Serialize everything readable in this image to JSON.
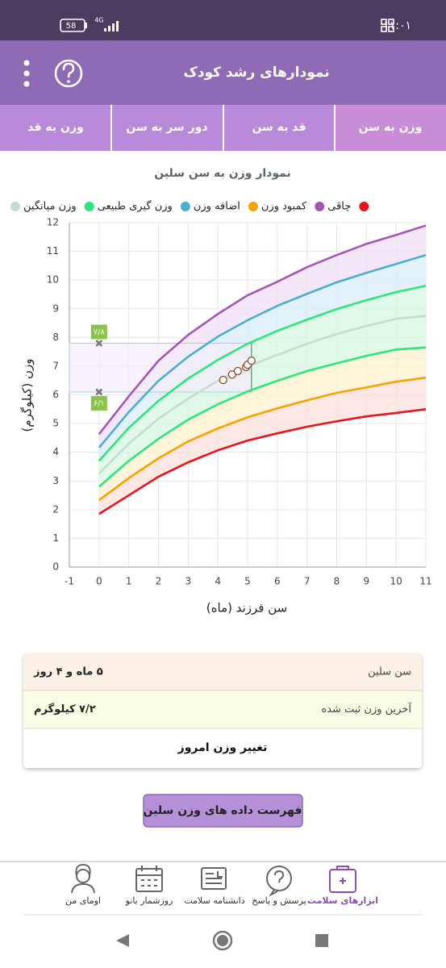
{
  "status_bar": {
    "time": "۱۱:۰۱",
    "battery": "58",
    "network": "4G"
  },
  "header": {
    "title": "نمودارهای رشد کودک"
  },
  "tabs": [
    "وزن به سن",
    "قد به سن",
    "دور سر به سن",
    "وزن به قد"
  ],
  "chart_data": {
    "type": "line",
    "title": "نمودار وزن به سن سلین",
    "x_label": "سن فرزند (ماه)",
    "y_label": "وزن (کیلوگرم)",
    "x": [
      0,
      1,
      2,
      3,
      4,
      5,
      6,
      7,
      8,
      9,
      10,
      11
    ],
    "series": [
      {
        "name": "وزن میانگین",
        "color": "#c8dccb",
        "fill": "#d6f7e2",
        "values": [
          3.26,
          4.3,
          5.17,
          5.87,
          6.49,
          6.99,
          7.39,
          7.78,
          8.12,
          8.4,
          8.65,
          8.75
        ]
      },
      {
        "name": "وزن گیری طبیعی",
        "color": "#2ee57a",
        "fill": "#d6f7e2",
        "values": [
          3.7,
          4.85,
          5.79,
          6.57,
          7.22,
          7.78,
          8.23,
          8.62,
          8.99,
          9.3,
          9.58,
          9.8
        ]
      },
      {
        "name": "اضافه وزن",
        "color": "#4aafcf",
        "fill": "#d9eef8",
        "values": [
          4.16,
          5.4,
          6.49,
          7.33,
          8.03,
          8.6,
          9.1,
          9.52,
          9.92,
          10.25,
          10.56,
          10.87
        ]
      },
      {
        "name": "کمبود وزن",
        "color": "#f5a300",
        "fill": "#fde0dc",
        "values": [
          2.33,
          3.1,
          3.79,
          4.38,
          4.83,
          5.22,
          5.53,
          5.81,
          6.07,
          6.26,
          6.46,
          6.6
        ]
      },
      {
        "name": "چاقی",
        "color": "#a455b8",
        "fill": "#efdff6",
        "values": [
          4.63,
          5.95,
          7.19,
          8.09,
          8.82,
          9.47,
          9.94,
          10.45,
          10.87,
          11.26,
          11.57,
          11.9
        ]
      },
      {
        "color": "#e8141b",
        "in_legend": true,
        "values": [
          1.85,
          2.5,
          3.15,
          3.65,
          4.07,
          4.41,
          4.66,
          4.89,
          5.08,
          5.25,
          5.37,
          5.5
        ]
      },
      {
        "color": "#2ee57a",
        "fill": "#fdf2cf",
        "values": [
          2.8,
          3.7,
          4.47,
          5.14,
          5.67,
          6.12,
          6.49,
          6.83,
          7.1,
          7.36,
          7.58,
          7.65
        ]
      }
    ],
    "points": {
      "color": "#8a4a2a",
      "x": [
        4.18,
        4.48,
        4.67,
        4.95,
        5.0,
        5.13
      ],
      "values": [
        6.52,
        6.71,
        6.83,
        6.97,
        7.05,
        7.19
      ]
    },
    "reference": {
      "x": 5.13,
      "marker_x": 0,
      "low": 6.1,
      "high": 7.8,
      "low_label": "۶/۱",
      "high_label": "۷/۸",
      "color": "#8bc34a"
    },
    "xlim": [
      -1,
      11
    ],
    "xticks": [
      -1,
      0,
      1,
      2,
      3,
      4,
      5,
      6,
      7,
      8,
      9,
      10,
      11
    ],
    "ylim": [
      0,
      12
    ],
    "yticks": [
      0,
      1,
      2,
      3,
      4,
      5,
      6,
      7,
      8,
      9,
      10,
      11,
      12
    ],
    "grid": true
  },
  "info_card": {
    "rows": [
      {
        "label": "سن سلین",
        "value": "۵ ماه و ۴ روز"
      },
      {
        "label": "آخرین وزن ثبت شده",
        "value": "۷/۲ کیلوگرم"
      }
    ],
    "action": "تغییر وزن امروز"
  },
  "list_button": "فهرست داده های وزن سلین",
  "bottom_nav": [
    "ابزارهای سلامت",
    "پرسش و پاسخ",
    "دانشنامه سلامت",
    "روزشمار بانو",
    "اومای من"
  ]
}
